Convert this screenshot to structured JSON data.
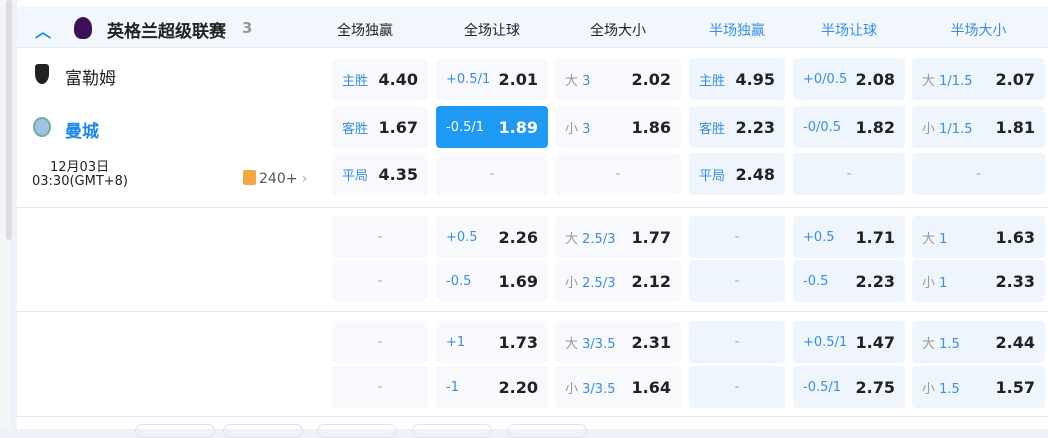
{
  "league": {
    "name": "英格兰超级联赛",
    "count": "3",
    "collapse_icon": "chevron-up-icon",
    "logo": "premier-league-logo"
  },
  "columns": [
    "全场独赢",
    "全场让球",
    "全场大小",
    "半场独赢",
    "半场让球",
    "半场大小"
  ],
  "match": {
    "home": "富勒姆",
    "away": "曼城",
    "date": "12月03日",
    "time": "03:30(GMT+8)",
    "more_markets": "240+"
  },
  "colors": {
    "accent": "#1e9af5",
    "selected_bg": "#1e9af5",
    "halftime_header": "#3a8ee6"
  },
  "rows": [
    [
      {
        "l": "主胜",
        "v": "4.40"
      },
      {
        "l": "+0.5/1",
        "v": "2.01"
      },
      {
        "p": "大",
        "l": "3",
        "v": "2.02"
      },
      {
        "l": "主胜",
        "v": "4.95"
      },
      {
        "l": "+0/0.5",
        "v": "2.08"
      },
      {
        "p": "大",
        "l": "1/1.5",
        "v": "2.07"
      }
    ],
    [
      {
        "l": "客胜",
        "v": "1.67"
      },
      {
        "l": "-0.5/1",
        "v": "1.89",
        "selected": true
      },
      {
        "p": "小",
        "l": "3",
        "v": "1.86"
      },
      {
        "l": "客胜",
        "v": "2.23"
      },
      {
        "l": "-0/0.5",
        "v": "1.82"
      },
      {
        "p": "小",
        "l": "1/1.5",
        "v": "1.81"
      }
    ],
    [
      {
        "l": "平局",
        "v": "4.35"
      },
      {
        "d": "-"
      },
      {
        "d": "-"
      },
      {
        "l": "平局",
        "v": "2.48"
      },
      {
        "d": "-"
      },
      {
        "d": "-"
      }
    ],
    [
      {
        "d": "-"
      },
      {
        "l": "+0.5",
        "v": "2.26"
      },
      {
        "p": "大",
        "l": "2.5/3",
        "v": "1.77"
      },
      {
        "d": "-"
      },
      {
        "l": "+0.5",
        "v": "1.71"
      },
      {
        "p": "大",
        "l": "1",
        "v": "1.63"
      }
    ],
    [
      {
        "d": "-"
      },
      {
        "l": "-0.5",
        "v": "1.69"
      },
      {
        "p": "小",
        "l": "2.5/3",
        "v": "2.12"
      },
      {
        "d": "-"
      },
      {
        "l": "-0.5",
        "v": "2.23"
      },
      {
        "p": "小",
        "l": "1",
        "v": "2.33"
      }
    ],
    [
      {
        "d": "-"
      },
      {
        "l": "+1",
        "v": "1.73"
      },
      {
        "p": "大",
        "l": "3/3.5",
        "v": "2.31"
      },
      {
        "d": "-"
      },
      {
        "l": "+0.5/1",
        "v": "1.47"
      },
      {
        "p": "大",
        "l": "1.5",
        "v": "2.44"
      }
    ],
    [
      {
        "d": "-"
      },
      {
        "l": "-1",
        "v": "2.20"
      },
      {
        "p": "小",
        "l": "3/3.5",
        "v": "1.64"
      },
      {
        "d": "-"
      },
      {
        "l": "-0.5/1",
        "v": "2.75"
      },
      {
        "p": "小",
        "l": "1.5",
        "v": "1.57"
      }
    ]
  ]
}
